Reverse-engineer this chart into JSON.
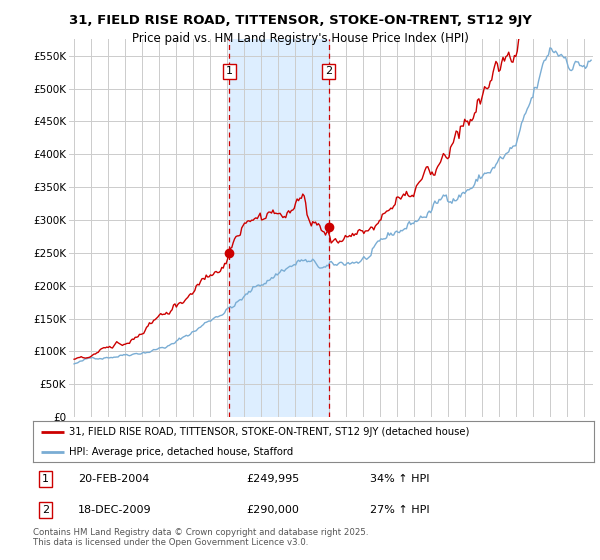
{
  "title": "31, FIELD RISE ROAD, TITTENSOR, STOKE-ON-TRENT, ST12 9JY",
  "subtitle": "Price paid vs. HM Land Registry's House Price Index (HPI)",
  "ylabel_ticks": [
    "£0",
    "£50K",
    "£100K",
    "£150K",
    "£200K",
    "£250K",
    "£300K",
    "£350K",
    "£400K",
    "£450K",
    "£500K",
    "£550K"
  ],
  "ytick_values": [
    0,
    50000,
    100000,
    150000,
    200000,
    250000,
    300000,
    350000,
    400000,
    450000,
    500000,
    550000
  ],
  "ylim": [
    0,
    575000
  ],
  "xlim_start": 1994.7,
  "xlim_end": 2025.5,
  "red_color": "#cc0000",
  "blue_color": "#7aadd4",
  "background_color": "#ffffff",
  "grid_color": "#cccccc",
  "highlight_bg": "#ddeeff",
  "transaction1_x": 2004.13,
  "transaction2_x": 2009.96,
  "transaction1_price": 249995,
  "transaction2_price": 290000,
  "legend_line1": "31, FIELD RISE ROAD, TITTENSOR, STOKE-ON-TRENT, ST12 9JY (detached house)",
  "legend_line2": "HPI: Average price, detached house, Stafford",
  "note1_label": "1",
  "note1_date": "20-FEB-2004",
  "note1_price": "£249,995",
  "note1_hpi": "34% ↑ HPI",
  "note2_label": "2",
  "note2_date": "18-DEC-2009",
  "note2_price": "£290,000",
  "note2_hpi": "27% ↑ HPI",
  "footer": "Contains HM Land Registry data © Crown copyright and database right 2025.\nThis data is licensed under the Open Government Licence v3.0."
}
